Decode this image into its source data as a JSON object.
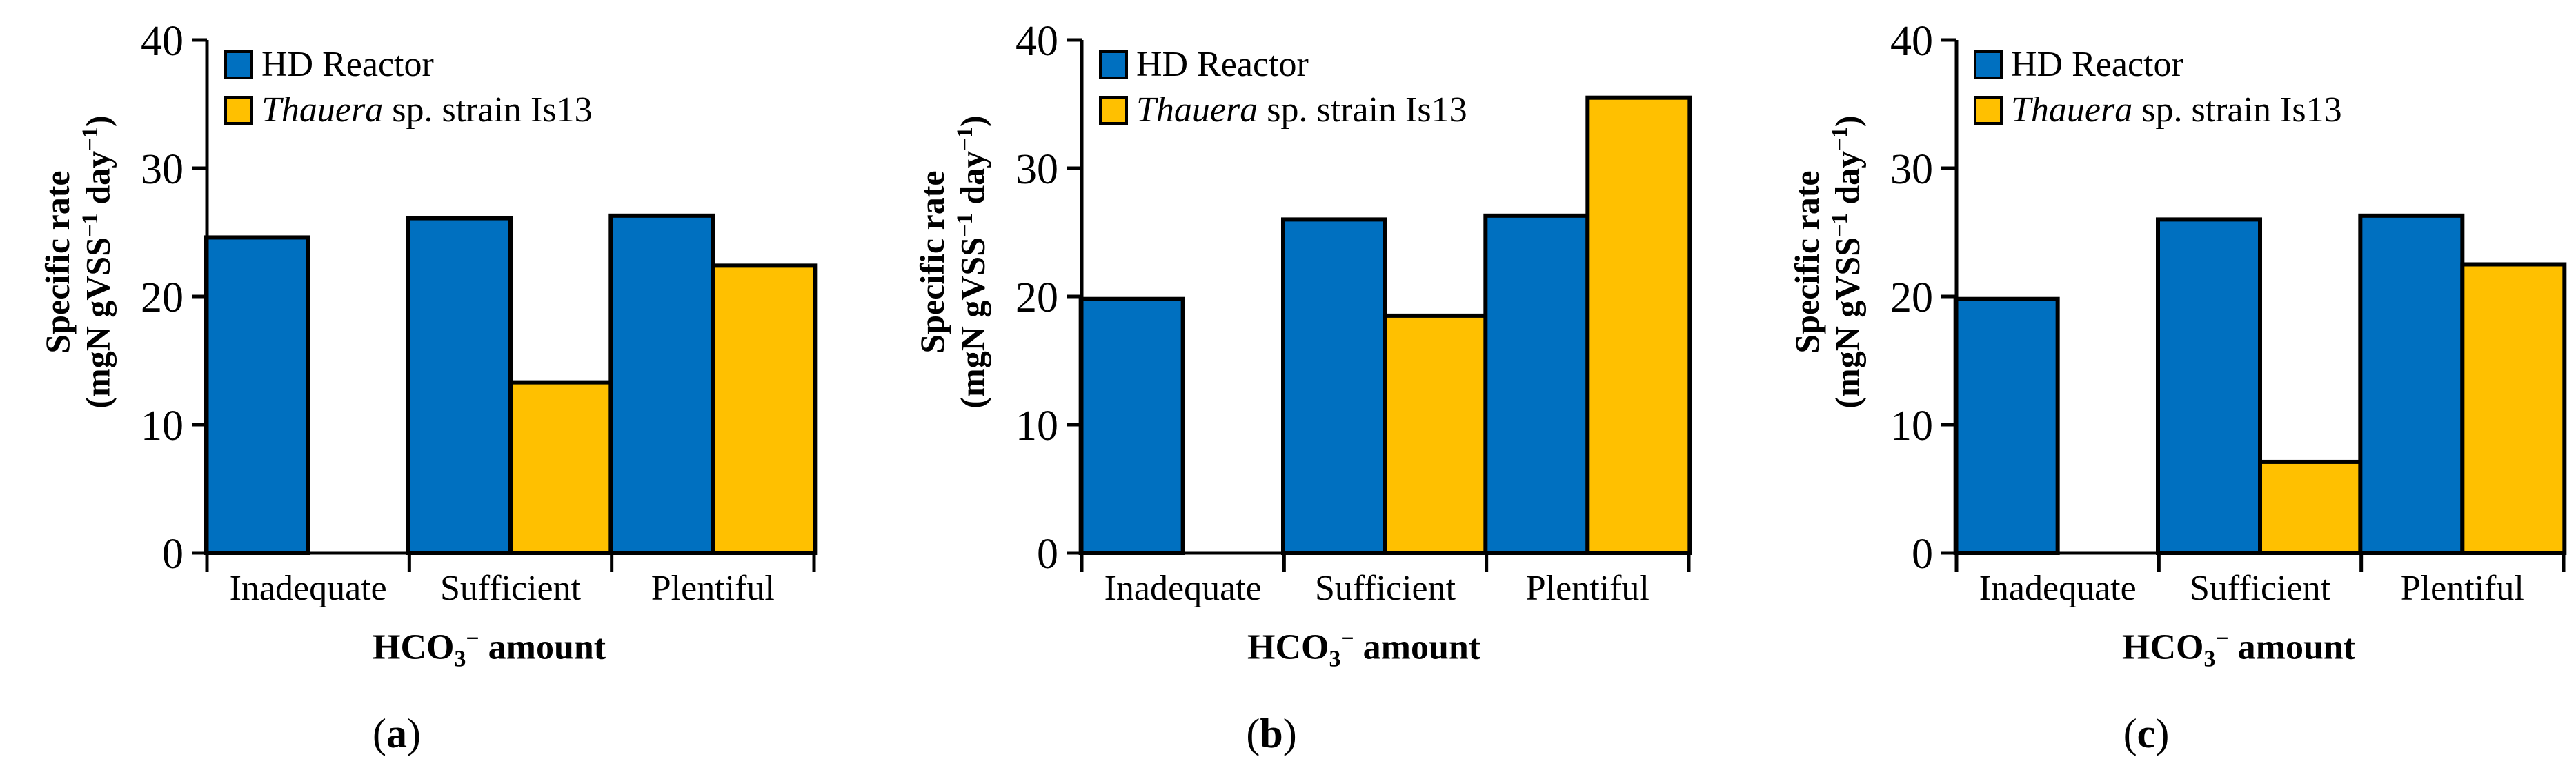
{
  "figure": {
    "panels": [
      {
        "label_letter": "a",
        "label": "(a)"
      },
      {
        "label_letter": "b",
        "label": "(b)"
      },
      {
        "label_letter": "c",
        "label": "(c)"
      }
    ],
    "ylabel_line1": "Specific rate",
    "ylabel_line2_prefix": "(mgN gVSS",
    "ylabel_line2_sup1": "−1",
    "ylabel_line2_mid": " day",
    "ylabel_line2_sup2": "−1",
    "ylabel_line2_suffix": ")",
    "xlabel_prefix": "HCO",
    "xlabel_sub": "3",
    "xlabel_sup": "−",
    "xlabel_suffix": " amount",
    "legend_hd": "HD Reactor",
    "legend_thauera_italic": "Thauera",
    "legend_thauera_rest": " sp. strain Is13"
  },
  "colors": {
    "hd": "#0070C0",
    "thauera": "#FFC000",
    "axis": "#000000"
  },
  "chart_data": [
    {
      "type": "bar",
      "title": "(a)",
      "categories": [
        "Inadequate",
        "Sufficient",
        "Plentiful"
      ],
      "series": [
        {
          "name": "HD Reactor",
          "values": [
            24.6,
            26.1,
            26.3
          ]
        },
        {
          "name": "Thauera sp. strain Is13",
          "values": [
            0,
            13.3,
            22.4
          ]
        }
      ],
      "xlabel": "HCO3− amount",
      "ylabel": "Specific rate (mgN gVSS−1 day−1)",
      "ylim": [
        0,
        40
      ],
      "yticks": [
        0,
        10,
        20,
        30,
        40
      ]
    },
    {
      "type": "bar",
      "title": "(b)",
      "categories": [
        "Inadequate",
        "Sufficient",
        "Plentiful"
      ],
      "series": [
        {
          "name": "HD Reactor",
          "values": [
            19.8,
            26.0,
            26.3
          ]
        },
        {
          "name": "Thauera sp. strain Is13",
          "values": [
            0,
            18.5,
            35.5
          ]
        }
      ],
      "xlabel": "HCO3− amount",
      "ylabel": "Specific rate (mgN gVSS−1 day−1)",
      "ylim": [
        0,
        40
      ],
      "yticks": [
        0,
        10,
        20,
        30,
        40
      ]
    },
    {
      "type": "bar",
      "title": "(c)",
      "categories": [
        "Inadequate",
        "Sufficient",
        "Plentiful"
      ],
      "series": [
        {
          "name": "HD Reactor",
          "values": [
            19.8,
            26.0,
            26.3
          ]
        },
        {
          "name": "Thauera sp. strain Is13",
          "values": [
            0,
            7.1,
            22.5
          ]
        }
      ],
      "xlabel": "HCO3− amount",
      "ylabel": "Specific rate (mgN gVSS−1 day−1)",
      "ylim": [
        0,
        40
      ],
      "yticks": [
        0,
        10,
        20,
        30,
        40
      ]
    }
  ]
}
